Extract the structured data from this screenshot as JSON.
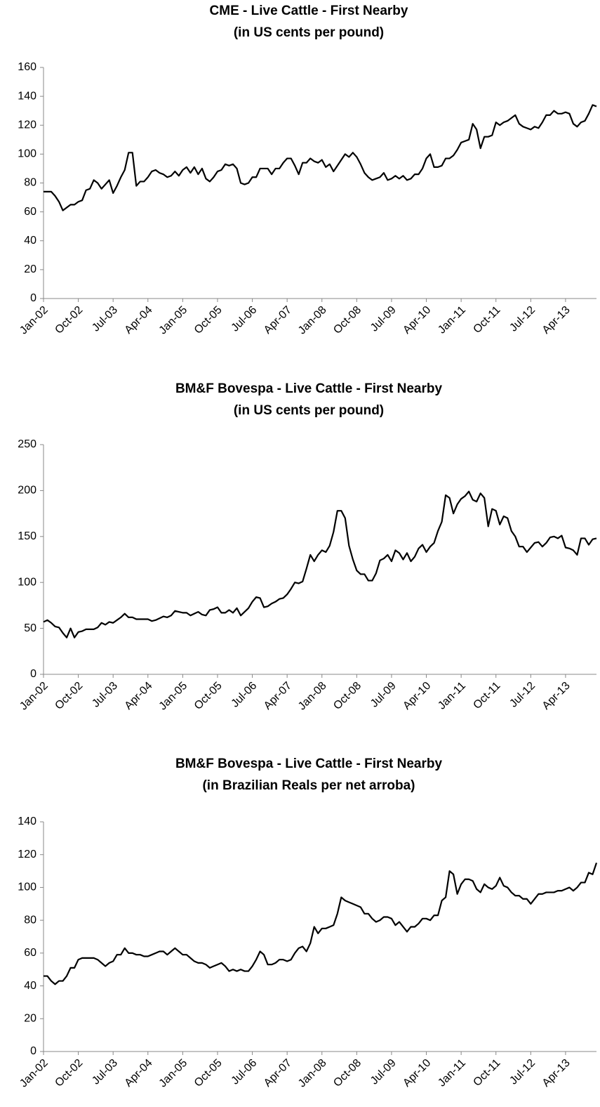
{
  "chart_data": [
    {
      "type": "line",
      "title": "CME - Live Cattle - First Nearby",
      "subtitle": "(in US cents per pound)",
      "color": "#000000",
      "categories": [
        "Jan-02",
        null,
        null,
        null,
        null,
        null,
        null,
        null,
        null,
        "Oct-02",
        null,
        null,
        null,
        null,
        null,
        null,
        null,
        null,
        "Jul-03",
        null,
        null,
        null,
        null,
        null,
        null,
        null,
        null,
        "Apr-04",
        null,
        null,
        null,
        null,
        null,
        null,
        null,
        null,
        "Jan-05",
        null,
        null,
        null,
        null,
        null,
        null,
        null,
        null,
        "Oct-05",
        null,
        null,
        null,
        null,
        null,
        null,
        null,
        null,
        "Jul-06",
        null,
        null,
        null,
        null,
        null,
        null,
        null,
        null,
        "Apr-07",
        null,
        null,
        null,
        null,
        null,
        null,
        null,
        null,
        "Jan-08",
        null,
        null,
        null,
        null,
        null,
        null,
        null,
        null,
        "Oct-08",
        null,
        null,
        null,
        null,
        null,
        null,
        null,
        null,
        "Jul-09",
        null,
        null,
        null,
        null,
        null,
        null,
        null,
        null,
        "Apr-10",
        null,
        null,
        null,
        null,
        null,
        null,
        null,
        null,
        "Jan-11",
        null,
        null,
        null,
        null,
        null,
        null,
        null,
        null,
        "Oct-11",
        null,
        null,
        null,
        null,
        null,
        null,
        null,
        null,
        "Jul-12",
        null,
        null,
        null,
        null,
        null,
        null,
        null,
        null,
        "Apr-13",
        null,
        null,
        null,
        null,
        null,
        null,
        null,
        null
      ],
      "values": [
        74,
        74,
        74,
        71,
        67,
        61,
        63,
        65,
        65,
        67,
        68,
        75,
        76,
        82,
        80,
        76,
        79,
        82,
        73,
        78,
        84,
        89,
        101,
        101,
        78,
        81,
        81,
        84,
        88,
        89,
        87,
        86,
        84,
        85,
        88,
        85,
        89,
        91,
        87,
        91,
        86,
        90,
        83,
        81,
        84,
        88,
        89,
        93,
        92,
        93,
        90,
        80,
        79,
        80,
        84,
        84,
        90,
        90,
        90,
        86,
        90,
        90,
        94,
        97,
        97,
        92,
        86,
        94,
        94,
        97,
        95,
        94,
        96,
        91,
        93,
        88,
        92,
        96,
        100,
        98,
        101,
        98,
        93,
        87,
        84,
        82,
        83,
        84,
        87,
        82,
        83,
        85,
        83,
        85,
        82,
        83,
        86,
        86,
        90,
        97,
        100,
        91,
        91,
        92,
        97,
        97,
        99,
        103,
        108,
        109,
        110,
        121,
        117,
        104,
        112,
        112,
        113,
        122,
        120,
        122,
        123,
        125,
        127,
        121,
        119,
        118,
        117,
        119,
        118,
        122,
        127,
        127,
        130,
        128,
        128,
        129,
        128,
        121,
        119,
        122,
        123,
        128,
        134,
        133
      ],
      "ylim": [
        0,
        160
      ],
      "yticks": [
        0,
        20,
        40,
        60,
        80,
        100,
        120,
        140,
        160
      ],
      "grid": false
    },
    {
      "type": "line",
      "title": "BM&F Bovespa  - Live Cattle - First Nearby",
      "subtitle": "(in US cents per pound)",
      "color": "#000000",
      "categories": [
        "Jan-02",
        null,
        null,
        null,
        null,
        null,
        null,
        null,
        null,
        "Oct-02",
        null,
        null,
        null,
        null,
        null,
        null,
        null,
        null,
        "Jul-03",
        null,
        null,
        null,
        null,
        null,
        null,
        null,
        null,
        "Apr-04",
        null,
        null,
        null,
        null,
        null,
        null,
        null,
        null,
        "Jan-05",
        null,
        null,
        null,
        null,
        null,
        null,
        null,
        null,
        "Oct-05",
        null,
        null,
        null,
        null,
        null,
        null,
        null,
        null,
        "Jul-06",
        null,
        null,
        null,
        null,
        null,
        null,
        null,
        null,
        "Apr-07",
        null,
        null,
        null,
        null,
        null,
        null,
        null,
        null,
        "Jan-08",
        null,
        null,
        null,
        null,
        null,
        null,
        null,
        null,
        "Oct-08",
        null,
        null,
        null,
        null,
        null,
        null,
        null,
        null,
        "Jul-09",
        null,
        null,
        null,
        null,
        null,
        null,
        null,
        null,
        "Apr-10",
        null,
        null,
        null,
        null,
        null,
        null,
        null,
        null,
        "Jan-11",
        null,
        null,
        null,
        null,
        null,
        null,
        null,
        null,
        "Oct-11",
        null,
        null,
        null,
        null,
        null,
        null,
        null,
        null,
        "Jul-12",
        null,
        null,
        null,
        null,
        null,
        null,
        null,
        null,
        "Apr-13",
        null,
        null,
        null,
        null,
        null,
        null,
        null,
        null
      ],
      "values": [
        57,
        59,
        56,
        52,
        51,
        45,
        40,
        50,
        40,
        46,
        47,
        49,
        49,
        49,
        51,
        56,
        54,
        57,
        56,
        59,
        62,
        66,
        62,
        62,
        60,
        60,
        60,
        60,
        58,
        59,
        61,
        63,
        62,
        64,
        69,
        68,
        67,
        67,
        64,
        66,
        68,
        65,
        64,
        70,
        71,
        73,
        67,
        67,
        70,
        67,
        72,
        64,
        68,
        72,
        79,
        84,
        83,
        73,
        74,
        77,
        79,
        82,
        83,
        87,
        93,
        100,
        99,
        101,
        115,
        130,
        123,
        130,
        135,
        133,
        140,
        155,
        178,
        178,
        170,
        140,
        125,
        113,
        109,
        109,
        102,
        102,
        110,
        124,
        126,
        130,
        123,
        135,
        132,
        125,
        132,
        123,
        128,
        137,
        141,
        133,
        139,
        143,
        156,
        166,
        195,
        192,
        175,
        185,
        191,
        194,
        199,
        190,
        188,
        197,
        192,
        161,
        180,
        178,
        163,
        172,
        170,
        156,
        150,
        139,
        139,
        133,
        138,
        143,
        144,
        139,
        143,
        149,
        150,
        148,
        151,
        138,
        137,
        135,
        130,
        148,
        148,
        141,
        147,
        148
      ],
      "ylim": [
        0,
        250
      ],
      "yticks": [
        0,
        50,
        100,
        150,
        200,
        250
      ],
      "grid": false
    },
    {
      "type": "line",
      "title": "BM&F Bovespa - Live Cattle - First Nearby",
      "subtitle": "(in Brazilian Reals per net arroba)",
      "color": "#000000",
      "categories": [
        "Jan-02",
        null,
        null,
        null,
        null,
        null,
        null,
        null,
        null,
        "Oct-02",
        null,
        null,
        null,
        null,
        null,
        null,
        null,
        null,
        "Jul-03",
        null,
        null,
        null,
        null,
        null,
        null,
        null,
        null,
        "Apr-04",
        null,
        null,
        null,
        null,
        null,
        null,
        null,
        null,
        "Jan-05",
        null,
        null,
        null,
        null,
        null,
        null,
        null,
        null,
        "Oct-05",
        null,
        null,
        null,
        null,
        null,
        null,
        null,
        null,
        "Jul-06",
        null,
        null,
        null,
        null,
        null,
        null,
        null,
        null,
        "Apr-07",
        null,
        null,
        null,
        null,
        null,
        null,
        null,
        null,
        "Jan-08",
        null,
        null,
        null,
        null,
        null,
        null,
        null,
        null,
        "Oct-08",
        null,
        null,
        null,
        null,
        null,
        null,
        null,
        null,
        "Jul-09",
        null,
        null,
        null,
        null,
        null,
        null,
        null,
        null,
        "Apr-10",
        null,
        null,
        null,
        null,
        null,
        null,
        null,
        null,
        "Jan-11",
        null,
        null,
        null,
        null,
        null,
        null,
        null,
        null,
        "Oct-11",
        null,
        null,
        null,
        null,
        null,
        null,
        null,
        null,
        "Jul-12",
        null,
        null,
        null,
        null,
        null,
        null,
        null,
        null,
        "Apr-13",
        null,
        null,
        null,
        null,
        null,
        null,
        null,
        null
      ],
      "values": [
        46,
        46,
        43,
        41,
        43,
        43,
        46,
        51,
        51,
        56,
        57,
        57,
        57,
        57,
        56,
        54,
        52,
        54,
        55,
        59,
        59,
        63,
        60,
        60,
        59,
        59,
        58,
        58,
        59,
        60,
        61,
        61,
        59,
        61,
        63,
        61,
        59,
        59,
        57,
        55,
        54,
        54,
        53,
        51,
        52,
        53,
        54,
        52,
        49,
        50,
        49,
        50,
        49,
        49,
        52,
        56,
        61,
        59,
        53,
        53,
        54,
        56,
        56,
        55,
        56,
        60,
        63,
        64,
        61,
        66,
        76,
        72,
        75,
        75,
        76,
        77,
        84,
        94,
        92,
        91,
        90,
        89,
        88,
        84,
        84,
        81,
        79,
        80,
        82,
        82,
        81,
        77,
        79,
        76,
        73,
        76,
        76,
        78,
        81,
        81,
        80,
        83,
        83,
        92,
        94,
        110,
        108,
        96,
        102,
        105,
        105,
        104,
        99,
        97,
        102,
        100,
        99,
        101,
        106,
        101,
        100,
        97,
        95,
        95,
        93,
        93,
        90,
        93,
        96,
        96,
        97,
        97,
        97,
        98,
        98,
        99,
        100,
        98,
        100,
        103,
        103,
        109,
        108,
        115
      ],
      "ylim": [
        0,
        140
      ],
      "yticks": [
        0,
        20,
        40,
        60,
        80,
        100,
        120,
        140
      ],
      "grid": false
    }
  ]
}
